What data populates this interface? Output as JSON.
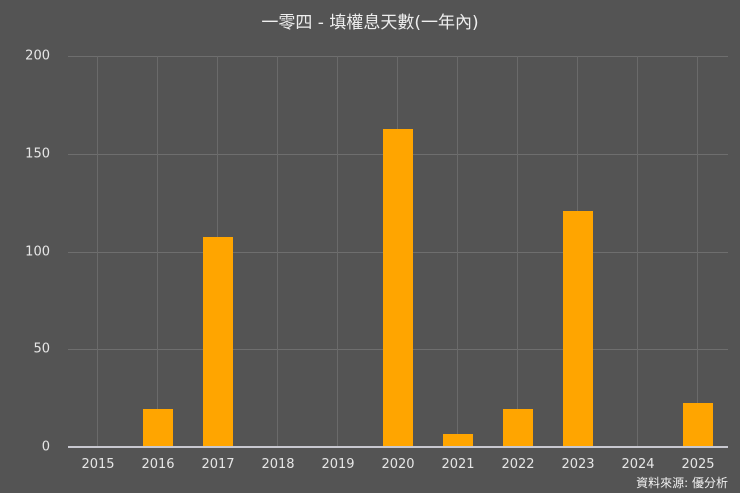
{
  "chart_data": {
    "type": "bar",
    "title": "一零四 - 填權息天數(一年內)",
    "xlabel": "",
    "ylabel": "",
    "categories": [
      "2015",
      "2016",
      "2017",
      "2018",
      "2019",
      "2020",
      "2021",
      "2022",
      "2023",
      "2024",
      "2025"
    ],
    "values": [
      0,
      19,
      107,
      0,
      0,
      162,
      6,
      19,
      120,
      0,
      22
    ],
    "ylim": [
      0,
      200
    ],
    "yticks": [
      "0",
      "50",
      "100",
      "150",
      "200"
    ],
    "grid": true,
    "legend": null,
    "bar_color": "#ffa500",
    "annotation": "資料來源: 優分析"
  },
  "colors": {
    "background": "#545454",
    "bar": "#ffa500",
    "grid": "#6e6e6e",
    "text": "#e6e6e6"
  }
}
